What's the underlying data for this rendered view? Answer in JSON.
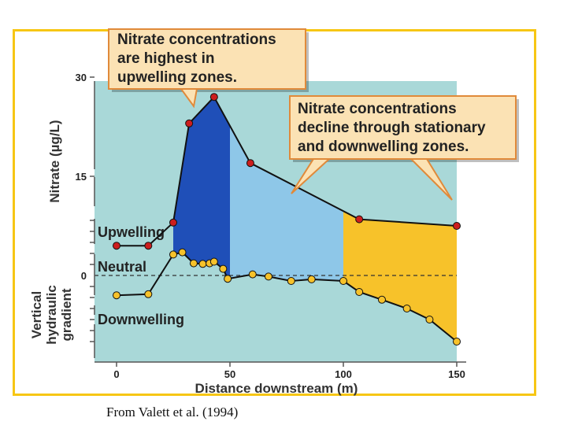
{
  "caption": "From Valett et al. (1994)",
  "colors": {
    "frame": "#f7c614",
    "plot_background": "#a9d8d8",
    "upwelling_fill": "#1f4fb8",
    "stationary_fill": "#8ec7e8",
    "downwelling_fill": "#f7c22a",
    "nitrate_marker": "#cc1e1e",
    "gradient_marker": "#f7c22a",
    "callout_fill": "#fbe2b4",
    "callout_border": "#e08a3a"
  },
  "chart_data": {
    "type": "line",
    "xlabel": "Distance downstream (m)",
    "xlim": [
      0,
      150
    ],
    "x_ticks": [
      0,
      50,
      100,
      150
    ],
    "panels": [
      {
        "name": "nitrate",
        "ylabel": "Nitrate (µg/L)",
        "y_ticks": [
          15,
          30
        ],
        "series": [
          {
            "x": [
              0,
              14,
              25,
              32,
              43,
              59,
              107,
              150
            ],
            "y": [
              4.5,
              4.5,
              8,
              23,
              27,
              17,
              8.5,
              7.5
            ]
          }
        ]
      },
      {
        "name": "vertical_hydraulic_gradient",
        "ylabel": "Vertical hydraulic gradient",
        "y_ticks": [
          0
        ],
        "zero_line": "dashed",
        "series": [
          {
            "x": [
              0,
              14,
              25,
              29,
              34,
              38,
              41,
              43,
              47,
              49,
              60,
              67,
              77,
              86,
              100,
              107,
              117,
              128,
              138,
              150
            ],
            "y": [
              -1.8,
              -1.7,
              1.9,
              2.1,
              1.1,
              1.05,
              1.1,
              1.25,
              0.6,
              -0.3,
              0.1,
              -0.1,
              -0.5,
              -0.35,
              -0.5,
              -1.5,
              -2.2,
              -3,
              -4,
              -6
            ]
          }
        ],
        "zone_labels": [
          "Upwelling",
          "Neutral",
          "Downwelling"
        ]
      }
    ],
    "zones": [
      {
        "name": "upwelling",
        "x_range": [
          25,
          50
        ]
      },
      {
        "name": "stationary",
        "x_range": [
          50,
          100
        ]
      },
      {
        "name": "downwelling",
        "x_range": [
          100,
          150
        ]
      }
    ],
    "annotations": [
      "Nitrate concentrations are highest in upwelling zones.",
      "Nitrate concentrations decline through stationary and downwelling zones."
    ],
    "callouts": [
      {
        "lines": [
          "Nitrate concentrations",
          "are highest in",
          "upwelling zones."
        ]
      },
      {
        "lines": [
          "Nitrate concentrations",
          "decline through stationary",
          "and downwelling zones."
        ]
      }
    ]
  }
}
